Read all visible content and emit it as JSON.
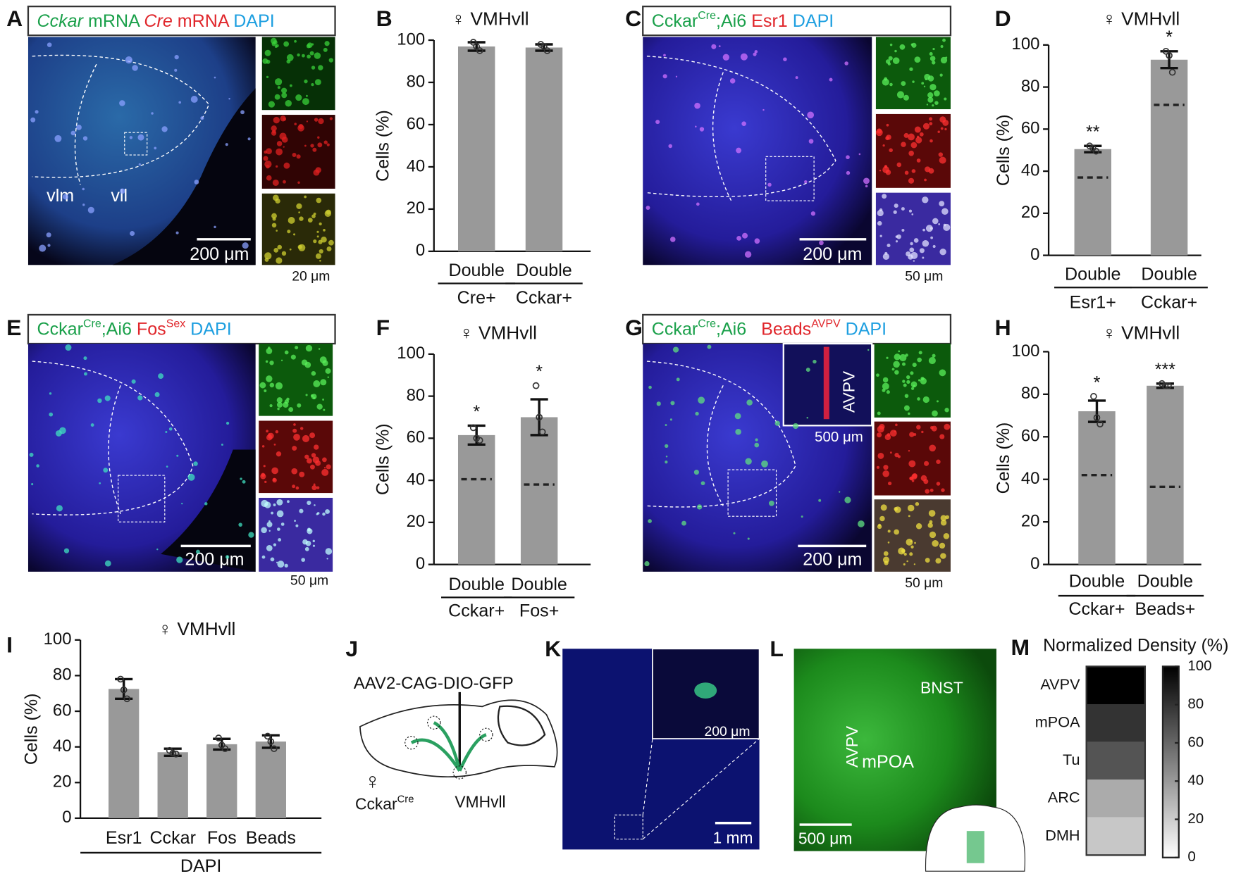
{
  "figure": {
    "letters": [
      "A",
      "B",
      "C",
      "D",
      "E",
      "F",
      "G",
      "H",
      "I",
      "J",
      "K",
      "L",
      "M"
    ],
    "A": {
      "header": [
        {
          "text": "Cckar",
          "color": "#1aa04a",
          "italic": true
        },
        {
          "text": " mRNA ",
          "color": "#1aa04a"
        },
        {
          "text": "Cre",
          "color": "#e0262b",
          "italic": true
        },
        {
          "text": " mRNA ",
          "color": "#e0262b"
        },
        {
          "text": "DAPI",
          "color": "#1e9fe0"
        }
      ],
      "labels": [
        "vlm",
        "vll"
      ],
      "scale": "200 μm",
      "inset_scale": "20 μm"
    },
    "C": {
      "header": [
        {
          "text": "Cckar",
          "color": "#1aa04a"
        },
        {
          "text": "Cre",
          "color": "#1aa04a",
          "sup": true
        },
        {
          "text": ";Ai6 ",
          "color": "#1aa04a"
        },
        {
          "text": "Esr1 ",
          "color": "#e0262b"
        },
        {
          "text": "DAPI",
          "color": "#1e9fe0"
        }
      ],
      "scale": "200 μm",
      "inset_scale": "50 μm"
    },
    "E": {
      "header": [
        {
          "text": "Cckar",
          "color": "#1aa04a"
        },
        {
          "text": "Cre",
          "color": "#1aa04a",
          "sup": true
        },
        {
          "text": ";Ai6 ",
          "color": "#1aa04a"
        },
        {
          "text": "Fos",
          "color": "#e0262b"
        },
        {
          "text": "Sex",
          "color": "#e0262b",
          "sup": true
        },
        {
          "text": " DAPI",
          "color": "#1e9fe0"
        }
      ],
      "scale": "200 μm",
      "inset_scale": "50 μm"
    },
    "G": {
      "header": [
        {
          "text": "Cckar",
          "color": "#1aa04a"
        },
        {
          "text": "Cre",
          "color": "#1aa04a",
          "sup": true
        },
        {
          "text": ";Ai6   ",
          "color": "#1aa04a"
        },
        {
          "text": "Beads",
          "color": "#e0262b"
        },
        {
          "text": "AVPV",
          "color": "#e0262b",
          "sup": true
        },
        {
          "text": " DAPI",
          "color": "#1e9fe0"
        }
      ],
      "inset_label": "AVPV",
      "inset_top_scale": "500 μm",
      "scale": "200 μm",
      "inset_scale": "50 μm"
    },
    "J": {
      "virus": "AAV2-CAG-DIO-GFP",
      "sex": "♀",
      "line": "Cckar",
      "line_sup": "Cre",
      "target": "VMHvll"
    },
    "K": {
      "inset_scale": "200 μm",
      "scale": "1 mm"
    },
    "L": {
      "labels": [
        "BNST",
        "AVPV",
        "mPOA"
      ],
      "scale": "500 μm"
    }
  },
  "chart_data": [
    {
      "type": "bar",
      "title": "♀ VMHvll",
      "ylabel": "Cells (%)",
      "categories": [
        "Double",
        "Double"
      ],
      "sublabels": [
        "Cre+",
        "Cckar+"
      ],
      "values": [
        97,
        96.5
      ],
      "errors": [
        2,
        1.5
      ],
      "points": [
        [
          99,
          97,
          95
        ],
        [
          98,
          97,
          95
        ]
      ],
      "color": "#999999",
      "ylim": [
        0,
        100
      ],
      "yticks": [
        0,
        20,
        40,
        60,
        80,
        100
      ]
    },
    {
      "type": "bar",
      "title": "♀ VMHvll",
      "ylabel": "Cells (%)",
      "categories": [
        "Double",
        "Double"
      ],
      "sublabels": [
        "Esr1+",
        "Cckar+"
      ],
      "values": [
        50.5,
        93
      ],
      "errors": [
        1.5,
        4
      ],
      "points": [
        [
          52,
          51,
          49.5
        ],
        [
          97,
          95,
          87
        ]
      ],
      "chance": [
        37,
        71.5
      ],
      "significance": [
        "**",
        "*"
      ],
      "color": "#999999",
      "ylim": [
        0,
        100
      ],
      "yticks": [
        0,
        20,
        40,
        60,
        80,
        100
      ]
    },
    {
      "type": "bar",
      "title": "♀ VMHvll",
      "ylabel": "Cells (%)",
      "categories": [
        "Double",
        "Double"
      ],
      "sublabels": [
        "Cckar+",
        "Fos+"
      ],
      "values": [
        61.5,
        70
      ],
      "errors": [
        4.5,
        8.5
      ],
      "points": [
        [
          65,
          60,
          59
        ],
        [
          85,
          70,
          63
        ]
      ],
      "chance": [
        40.5,
        38
      ],
      "significance": [
        "*",
        "*"
      ],
      "color": "#999999",
      "ylim": [
        0,
        100
      ],
      "yticks": [
        0,
        20,
        40,
        60,
        80,
        100
      ]
    },
    {
      "type": "bar",
      "title": "♀ VMHvll",
      "ylabel": "Cells (%)",
      "categories": [
        "Double",
        "Double"
      ],
      "sublabels": [
        "Cckar+",
        "Beads+"
      ],
      "values": [
        72,
        84
      ],
      "errors": [
        5,
        1
      ],
      "points": [
        [
          79,
          69,
          66
        ],
        [
          85,
          84,
          84
        ]
      ],
      "chance": [
        42,
        36.5
      ],
      "significance": [
        "*",
        "***"
      ],
      "color": "#999999",
      "ylim": [
        0,
        100
      ],
      "yticks": [
        0,
        20,
        40,
        60,
        80,
        100
      ]
    },
    {
      "type": "bar",
      "title": "♀ VMHvll",
      "ylabel": "Cells (%)",
      "xlabel": "DAPI",
      "categories": [
        "Esr1",
        "Cckar",
        "Fos",
        "Beads"
      ],
      "values": [
        72.5,
        37,
        41.5,
        43
      ],
      "errors": [
        5.5,
        2,
        3,
        3.5
      ],
      "points": [
        [
          78,
          72,
          67
        ],
        [
          38,
          36.5,
          36
        ],
        [
          45,
          41,
          39
        ],
        [
          46,
          43,
          39
        ]
      ],
      "color": "#999999",
      "ylim": [
        0,
        100
      ],
      "yticks": [
        0,
        20,
        40,
        60,
        80,
        100
      ]
    },
    {
      "type": "heatmap",
      "title": "Normalized Density (%)",
      "categories": [
        "AVPV",
        "mPOA",
        "Tu",
        "ARC",
        "DMH"
      ],
      "values": [
        100,
        80,
        67,
        33,
        22
      ],
      "clim": [
        0,
        100
      ],
      "cticks": [
        0,
        20,
        40,
        60,
        80,
        100
      ]
    }
  ]
}
